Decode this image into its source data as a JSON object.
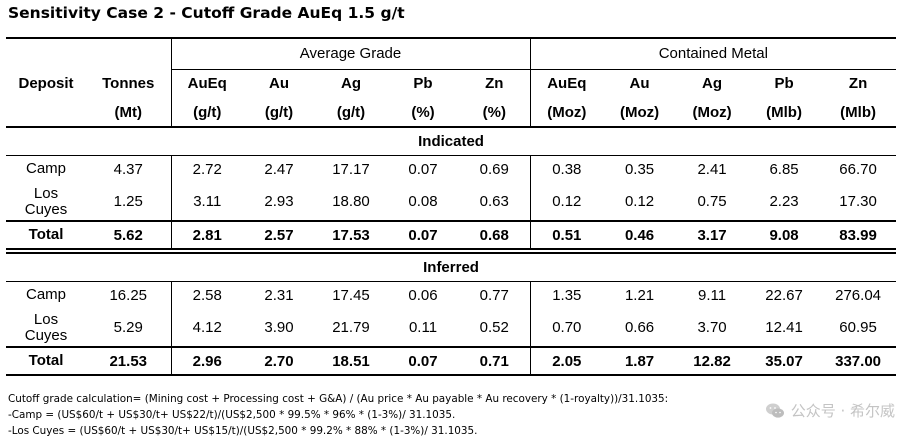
{
  "title": "Sensitivity Case 2 - Cutoff Grade AuEq 1.5 g/t",
  "groups": {
    "average_grade": "Average Grade",
    "contained_metal": "Contained Metal"
  },
  "headers": {
    "deposit": "Deposit",
    "tonnes": "Tonnes",
    "tonnes_unit": "(Mt)",
    "aueq": "AuEq",
    "aueq_unit": "(g/t)",
    "au": "Au",
    "au_unit": "(g/t)",
    "ag": "Ag",
    "ag_unit": "(g/t)",
    "pb": "Pb",
    "pb_unit": "(%)",
    "zn": "Zn",
    "zn_unit": "(%)",
    "m_aueq": "AuEq",
    "m_aueq_unit": "(Moz)",
    "m_au": "Au",
    "m_au_unit": "(Moz)",
    "m_ag": "Ag",
    "m_ag_unit": "(Moz)",
    "m_pb": "Pb",
    "m_pb_unit": "(Mlb)",
    "m_zn": "Zn",
    "m_zn_unit": "(Mlb)"
  },
  "indicated": {
    "label": "Indicated",
    "rows": [
      {
        "deposit": [
          "Camp"
        ],
        "values": [
          "4.37",
          "2.72",
          "2.47",
          "17.17",
          "0.07",
          "0.69",
          "0.38",
          "0.35",
          "2.41",
          "6.85",
          "66.70"
        ]
      },
      {
        "deposit": [
          "Los",
          "Cuyes"
        ],
        "values": [
          "1.25",
          "3.11",
          "2.93",
          "18.80",
          "0.08",
          "0.63",
          "0.12",
          "0.12",
          "0.75",
          "2.23",
          "17.30"
        ]
      }
    ],
    "total": {
      "deposit": [
        "Total"
      ],
      "values": [
        "5.62",
        "2.81",
        "2.57",
        "17.53",
        "0.07",
        "0.68",
        "0.51",
        "0.46",
        "3.17",
        "9.08",
        "83.99"
      ]
    }
  },
  "inferred": {
    "label": "Inferred",
    "rows": [
      {
        "deposit": [
          "Camp"
        ],
        "values": [
          "16.25",
          "2.58",
          "2.31",
          "17.45",
          "0.06",
          "0.77",
          "1.35",
          "1.21",
          "9.11",
          "22.67",
          "276.04"
        ]
      },
      {
        "deposit": [
          "Los",
          "Cuyes"
        ],
        "values": [
          "5.29",
          "4.12",
          "3.90",
          "21.79",
          "0.11",
          "0.52",
          "0.70",
          "0.66",
          "3.70",
          "12.41",
          "60.95"
        ]
      }
    ],
    "total": {
      "deposit": [
        "Total"
      ],
      "values": [
        "21.53",
        "2.96",
        "2.70",
        "18.51",
        "0.07",
        "0.71",
        "2.05",
        "1.87",
        "12.82",
        "35.07",
        "337.00"
      ]
    }
  },
  "footnotes": [
    "Cutoff grade calculation= (Mining cost + Processing cost + G&A) / (Au price * Au payable * Au recovery * (1-royalty))/31.1035:",
    "-Camp = (US$60/t + US$30/t+ US$22/t)/(US$2,500 * 99.5% * 96% * (1-3%)/ 31.1035.",
    "-Los Cuyes = (US$60/t + US$30/t+ US$15/t)/(US$2,500 * 99.2% * 88% * (1-3%)/ 31.1035."
  ],
  "watermark": {
    "icon": "wechat-icon",
    "text": "公众号 · 希尔威"
  }
}
